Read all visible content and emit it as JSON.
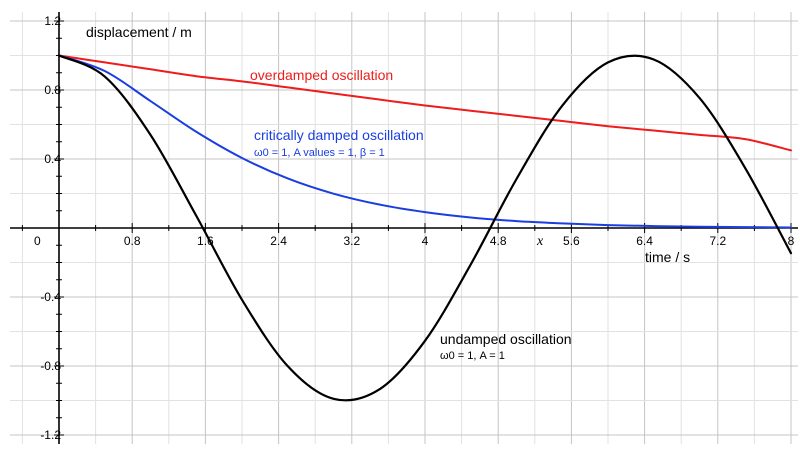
{
  "chart_data": {
    "type": "line",
    "xlabel": "time / s",
    "ylabel": "displacement / m",
    "xlim": [
      -0.6,
      8
    ],
    "ylim": [
      -1.2,
      1.2
    ],
    "x_ticks": [
      "0.8",
      "1.6",
      "2.4",
      "3.2",
      "4",
      "4.8",
      "5.6",
      "6.4",
      "7.2",
      "8"
    ],
    "y_ticks": [
      "1.2",
      "0.8",
      "0.4",
      "-0.4",
      "-0.8",
      "-1.2"
    ],
    "origin_label": "0",
    "x_symbol": "x",
    "grid": true,
    "series": [
      {
        "name": "overdamped oscillation",
        "color": "#ee1c1c",
        "x": [
          0,
          0.5,
          1,
          1.5,
          2,
          2.5,
          3,
          3.5,
          4,
          4.5,
          5,
          5.5,
          6,
          6.5,
          7,
          7.5,
          8
        ],
        "y": [
          1.0,
          0.96,
          0.92,
          0.88,
          0.85,
          0.815,
          0.78,
          0.745,
          0.71,
          0.68,
          0.65,
          0.62,
          0.59,
          0.565,
          0.54,
          0.515,
          0.45
        ]
      },
      {
        "name": "critically damped oscillation",
        "subtitle": "ω0 = 1, A values = 1, β = 1",
        "color": "#1a3ee0",
        "x": [
          0,
          0.5,
          1,
          1.5,
          2,
          2.5,
          3,
          3.5,
          4,
          4.5,
          5,
          5.5,
          6,
          6.5,
          7,
          7.5,
          8
        ],
        "y": [
          1.0,
          0.91,
          0.736,
          0.558,
          0.406,
          0.287,
          0.199,
          0.136,
          0.092,
          0.061,
          0.04,
          0.027,
          0.017,
          0.011,
          0.007,
          0.005,
          0.003
        ]
      },
      {
        "name": "undamped oscillation",
        "subtitle": "ω0 = 1, A = 1",
        "color": "#000000",
        "x": [
          0,
          0.5,
          1,
          1.5,
          2,
          2.5,
          3,
          3.5,
          4,
          4.5,
          5,
          5.5,
          6,
          6.5,
          7,
          7.5,
          8
        ],
        "y": [
          1.0,
          0.878,
          0.54,
          0.071,
          -0.416,
          -0.801,
          -0.99,
          -0.936,
          -0.654,
          -0.211,
          0.284,
          0.709,
          0.96,
          0.977,
          0.754,
          0.347,
          -0.146
        ]
      }
    ]
  }
}
